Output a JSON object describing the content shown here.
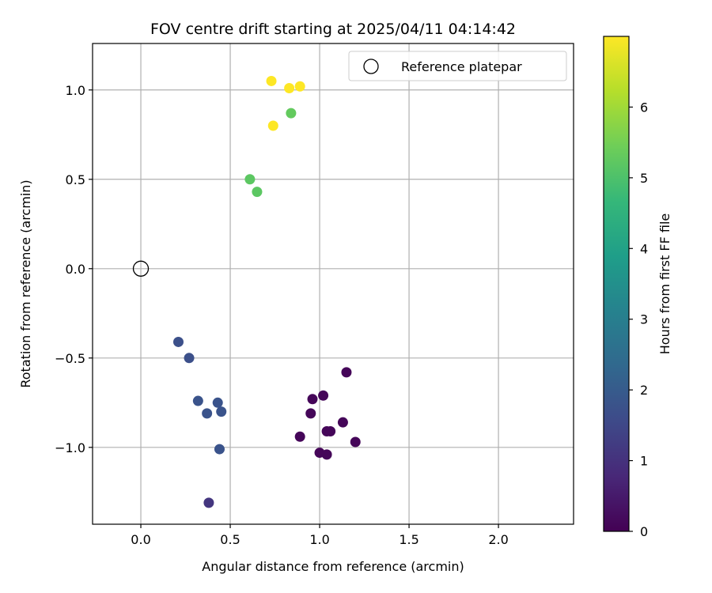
{
  "chart_data": {
    "type": "scatter",
    "title": "FOV centre drift starting at 2025/04/11 04:14:42",
    "xlabel": "Angular distance from reference (arcmin)",
    "ylabel": "Rotation from reference (arcmin)",
    "xlim": [
      -0.27,
      2.42
    ],
    "ylim": [
      -1.43,
      1.26
    ],
    "xticks": [
      0.0,
      0.5,
      1.0,
      1.5,
      2.0
    ],
    "xtick_labels": [
      "0.0",
      "0.5",
      "1.0",
      "1.5",
      "2.0"
    ],
    "yticks": [
      1.0,
      0.5,
      0.0,
      -0.5,
      -1.0
    ],
    "ytick_labels": [
      "1.0",
      "0.5",
      "0.0",
      "−0.5",
      "−1.0"
    ],
    "grid": true,
    "legend": {
      "position": "top-right",
      "entries": [
        "Reference platepar"
      ]
    },
    "reference_point": {
      "x": 0.0,
      "y": 0.0,
      "marker": "open-circle"
    },
    "colorbar": {
      "label": "Hours from first FF file",
      "range": [
        0,
        7
      ],
      "ticks": [
        0,
        1,
        2,
        3,
        4,
        5,
        6
      ],
      "tick_labels": [
        "0",
        "1",
        "2",
        "3",
        "4",
        "5",
        "6"
      ],
      "colormap": "viridis",
      "colors": [
        "#440154",
        "#482878",
        "#3e4a89",
        "#31688e",
        "#26828e",
        "#1f9e89",
        "#35b779",
        "#6ece58",
        "#b5de2b",
        "#fde725"
      ]
    },
    "points": [
      {
        "x": 1.15,
        "y": -0.58,
        "hours": 0.1
      },
      {
        "x": 1.02,
        "y": -0.71,
        "hours": 0.1
      },
      {
        "x": 0.96,
        "y": -0.73,
        "hours": 0.1
      },
      {
        "x": 0.95,
        "y": -0.81,
        "hours": 0.1
      },
      {
        "x": 1.13,
        "y": -0.86,
        "hours": 0.1
      },
      {
        "x": 1.04,
        "y": -0.91,
        "hours": 0.1
      },
      {
        "x": 1.06,
        "y": -0.91,
        "hours": 0.1
      },
      {
        "x": 0.89,
        "y": -0.94,
        "hours": 0.1
      },
      {
        "x": 1.2,
        "y": -0.97,
        "hours": 0.1
      },
      {
        "x": 1.0,
        "y": -1.03,
        "hours": 0.1
      },
      {
        "x": 1.04,
        "y": -1.04,
        "hours": 0.1
      },
      {
        "x": 0.38,
        "y": -1.31,
        "hours": 1.1
      },
      {
        "x": 0.21,
        "y": -0.41,
        "hours": 1.7
      },
      {
        "x": 0.27,
        "y": -0.5,
        "hours": 1.7
      },
      {
        "x": 0.32,
        "y": -0.74,
        "hours": 1.8
      },
      {
        "x": 0.43,
        "y": -0.75,
        "hours": 1.8
      },
      {
        "x": 0.37,
        "y": -0.81,
        "hours": 1.8
      },
      {
        "x": 0.45,
        "y": -0.8,
        "hours": 1.8
      },
      {
        "x": 0.44,
        "y": -1.01,
        "hours": 1.8
      },
      {
        "x": 0.61,
        "y": 0.5,
        "hours": 5.2
      },
      {
        "x": 0.65,
        "y": 0.43,
        "hours": 5.2
      },
      {
        "x": 0.84,
        "y": 0.87,
        "hours": 5.3
      },
      {
        "x": 0.73,
        "y": 1.05,
        "hours": 7.0
      },
      {
        "x": 0.83,
        "y": 1.01,
        "hours": 7.0
      },
      {
        "x": 0.89,
        "y": 1.02,
        "hours": 7.0
      },
      {
        "x": 0.74,
        "y": 0.8,
        "hours": 7.0
      }
    ]
  }
}
